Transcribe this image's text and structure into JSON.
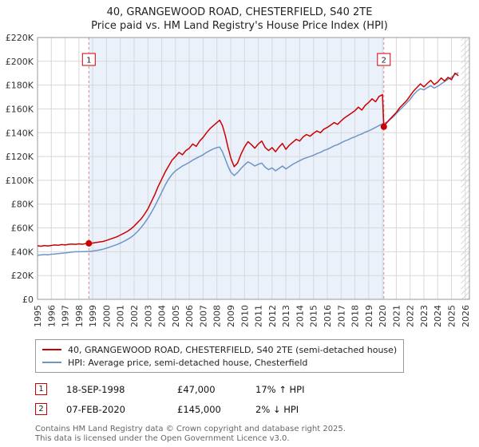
{
  "chart_data": {
    "type": "line",
    "title": "40, GRANGEWOOD ROAD, CHESTERFIELD, S40 2TE",
    "subtitle": "Price paid vs. HM Land Registry's House Price Index (HPI)",
    "xlim": [
      1995,
      2026.3
    ],
    "ylim": [
      0,
      220000
    ],
    "grid": true,
    "legend_position": "bottom",
    "x_ticks": [
      1995,
      1996,
      1997,
      1998,
      1999,
      2000,
      2001,
      2002,
      2003,
      2004,
      2005,
      2006,
      2007,
      2008,
      2009,
      2010,
      2011,
      2012,
      2013,
      2014,
      2015,
      2016,
      2017,
      2018,
      2019,
      2020,
      2021,
      2022,
      2023,
      2024,
      2025,
      2026
    ],
    "y_ticks": [
      {
        "value": 0,
        "label": "£0"
      },
      {
        "value": 20000,
        "label": "£20K"
      },
      {
        "value": 40000,
        "label": "£40K"
      },
      {
        "value": 60000,
        "label": "£60K"
      },
      {
        "value": 80000,
        "label": "£80K"
      },
      {
        "value": 100000,
        "label": "£100K"
      },
      {
        "value": 120000,
        "label": "£120K"
      },
      {
        "value": 140000,
        "label": "£140K"
      },
      {
        "value": 160000,
        "label": "£160K"
      },
      {
        "value": 180000,
        "label": "£180K"
      },
      {
        "value": 200000,
        "label": "£200K"
      },
      {
        "value": 220000,
        "label": "£220K"
      }
    ],
    "shaded_region": [
      1998.72,
      2020.1
    ],
    "hatch_region": [
      2025.7,
      2026.3
    ],
    "colors": {
      "property": "#cc0000",
      "hpi": "#6f95c5",
      "grid": "#d8d8d8",
      "axis_border": "#999999",
      "band": "#eaf1fb",
      "dashed": "#dd8888",
      "flag_border": "#cc0000"
    },
    "series": [
      {
        "name": "40, GRANGEWOOD ROAD, CHESTERFIELD, S40 2TE (semi-detached house)",
        "color": "#cc0000",
        "points": [
          [
            1995,
            45000
          ],
          [
            1995.25,
            44600
          ],
          [
            1995.5,
            45200
          ],
          [
            1995.75,
            44900
          ],
          [
            1996,
            45300
          ],
          [
            1996.25,
            45700
          ],
          [
            1996.5,
            45400
          ],
          [
            1996.75,
            46000
          ],
          [
            1997,
            45700
          ],
          [
            1997.25,
            46200
          ],
          [
            1997.5,
            46500
          ],
          [
            1997.75,
            46200
          ],
          [
            1998,
            46600
          ],
          [
            1998.25,
            46300
          ],
          [
            1998.5,
            46800
          ],
          [
            1998.72,
            47000
          ],
          [
            1999,
            47300
          ],
          [
            1999.25,
            47800
          ],
          [
            1999.5,
            48200
          ],
          [
            1999.75,
            48600
          ],
          [
            2000,
            49500
          ],
          [
            2000.25,
            50500
          ],
          [
            2000.5,
            51500
          ],
          [
            2000.75,
            52500
          ],
          [
            2001,
            54000
          ],
          [
            2001.25,
            55500
          ],
          [
            2001.5,
            57000
          ],
          [
            2001.75,
            59000
          ],
          [
            2002,
            61500
          ],
          [
            2002.25,
            64500
          ],
          [
            2002.5,
            67500
          ],
          [
            2002.75,
            71500
          ],
          [
            2003,
            76000
          ],
          [
            2003.25,
            82000
          ],
          [
            2003.5,
            88000
          ],
          [
            2003.75,
            95000
          ],
          [
            2004,
            101000
          ],
          [
            2004.25,
            107000
          ],
          [
            2004.5,
            112000
          ],
          [
            2004.75,
            117000
          ],
          [
            2005,
            120000
          ],
          [
            2005.25,
            123500
          ],
          [
            2005.5,
            121500
          ],
          [
            2005.75,
            125000
          ],
          [
            2006,
            127000
          ],
          [
            2006.25,
            130500
          ],
          [
            2006.5,
            128500
          ],
          [
            2006.75,
            133000
          ],
          [
            2007,
            136000
          ],
          [
            2007.25,
            140000
          ],
          [
            2007.5,
            143500
          ],
          [
            2007.75,
            146000
          ],
          [
            2008,
            148500
          ],
          [
            2008.2,
            150500
          ],
          [
            2008.4,
            146000
          ],
          [
            2008.6,
            138000
          ],
          [
            2008.8,
            128000
          ],
          [
            2009,
            119000
          ],
          [
            2009.25,
            111500
          ],
          [
            2009.5,
            114500
          ],
          [
            2009.75,
            122000
          ],
          [
            2010,
            128000
          ],
          [
            2010.25,
            132500
          ],
          [
            2010.5,
            130000
          ],
          [
            2010.75,
            127000
          ],
          [
            2011,
            130500
          ],
          [
            2011.25,
            133000
          ],
          [
            2011.5,
            127500
          ],
          [
            2011.75,
            125000
          ],
          [
            2012,
            127500
          ],
          [
            2012.25,
            124000
          ],
          [
            2012.5,
            128000
          ],
          [
            2012.75,
            131000
          ],
          [
            2013,
            126000
          ],
          [
            2013.25,
            129500
          ],
          [
            2013.5,
            132000
          ],
          [
            2013.75,
            134500
          ],
          [
            2014,
            133000
          ],
          [
            2014.25,
            136500
          ],
          [
            2014.5,
            138500
          ],
          [
            2014.75,
            137000
          ],
          [
            2015,
            139500
          ],
          [
            2015.25,
            141500
          ],
          [
            2015.5,
            140000
          ],
          [
            2015.75,
            143000
          ],
          [
            2016,
            144500
          ],
          [
            2016.25,
            146500
          ],
          [
            2016.5,
            148500
          ],
          [
            2016.75,
            147000
          ],
          [
            2017,
            150000
          ],
          [
            2017.25,
            152500
          ],
          [
            2017.5,
            154500
          ],
          [
            2017.75,
            156500
          ],
          [
            2018,
            158500
          ],
          [
            2018.25,
            161500
          ],
          [
            2018.5,
            159000
          ],
          [
            2018.75,
            163000
          ],
          [
            2019,
            165500
          ],
          [
            2019.25,
            168500
          ],
          [
            2019.5,
            166000
          ],
          [
            2019.75,
            170500
          ],
          [
            2020,
            172000
          ],
          [
            2020.1,
            145000
          ],
          [
            2020.25,
            147500
          ],
          [
            2020.5,
            151000
          ],
          [
            2020.75,
            154000
          ],
          [
            2021,
            157000
          ],
          [
            2021.25,
            161000
          ],
          [
            2021.5,
            164000
          ],
          [
            2021.75,
            167000
          ],
          [
            2022,
            171000
          ],
          [
            2022.25,
            175000
          ],
          [
            2022.5,
            178000
          ],
          [
            2022.75,
            181000
          ],
          [
            2023,
            178500
          ],
          [
            2023.25,
            181500
          ],
          [
            2023.5,
            184000
          ],
          [
            2023.75,
            180500
          ],
          [
            2024,
            182500
          ],
          [
            2024.25,
            186000
          ],
          [
            2024.5,
            183500
          ],
          [
            2024.75,
            186500
          ],
          [
            2025,
            184500
          ],
          [
            2025.25,
            190000
          ],
          [
            2025.5,
            188000
          ]
        ]
      },
      {
        "name": "HPI: Average price, semi-detached house, Chesterfield",
        "color": "#6f95c5",
        "points": [
          [
            1995,
            37000
          ],
          [
            1995.25,
            37300
          ],
          [
            1995.5,
            37600
          ],
          [
            1995.75,
            37400
          ],
          [
            1996,
            37900
          ],
          [
            1996.25,
            38100
          ],
          [
            1996.5,
            38400
          ],
          [
            1996.75,
            38700
          ],
          [
            1997,
            39000
          ],
          [
            1997.25,
            39300
          ],
          [
            1997.5,
            39700
          ],
          [
            1997.75,
            40000
          ],
          [
            1998,
            40000
          ],
          [
            1998.25,
            40100
          ],
          [
            1998.5,
            40200
          ],
          [
            1998.75,
            40200
          ],
          [
            1999,
            40600
          ],
          [
            1999.25,
            41000
          ],
          [
            1999.5,
            41500
          ],
          [
            1999.75,
            42100
          ],
          [
            2000,
            43000
          ],
          [
            2000.25,
            44000
          ],
          [
            2000.5,
            45000
          ],
          [
            2000.75,
            46000
          ],
          [
            2001,
            47200
          ],
          [
            2001.25,
            48600
          ],
          [
            2001.5,
            50200
          ],
          [
            2001.75,
            52000
          ],
          [
            2002,
            54200
          ],
          [
            2002.25,
            57000
          ],
          [
            2002.5,
            60200
          ],
          [
            2002.75,
            64000
          ],
          [
            2003,
            68200
          ],
          [
            2003.25,
            73000
          ],
          [
            2003.5,
            78200
          ],
          [
            2003.75,
            84000
          ],
          [
            2004,
            90000
          ],
          [
            2004.25,
            96000
          ],
          [
            2004.5,
            101000
          ],
          [
            2004.75,
            105000
          ],
          [
            2005,
            108000
          ],
          [
            2005.25,
            110000
          ],
          [
            2005.5,
            112000
          ],
          [
            2005.75,
            113500
          ],
          [
            2006,
            115000
          ],
          [
            2006.25,
            117000
          ],
          [
            2006.5,
            118500
          ],
          [
            2006.75,
            120000
          ],
          [
            2007,
            121500
          ],
          [
            2007.25,
            123500
          ],
          [
            2007.5,
            125000
          ],
          [
            2007.75,
            126500
          ],
          [
            2008,
            127500
          ],
          [
            2008.2,
            128000
          ],
          [
            2008.4,
            124000
          ],
          [
            2008.6,
            118000
          ],
          [
            2008.8,
            112000
          ],
          [
            2009,
            107000
          ],
          [
            2009.25,
            104000
          ],
          [
            2009.5,
            106500
          ],
          [
            2009.75,
            110000
          ],
          [
            2010,
            113000
          ],
          [
            2010.25,
            115500
          ],
          [
            2010.5,
            114000
          ],
          [
            2010.75,
            112000
          ],
          [
            2011,
            113500
          ],
          [
            2011.25,
            114500
          ],
          [
            2011.5,
            111000
          ],
          [
            2011.75,
            109000
          ],
          [
            2012,
            110500
          ],
          [
            2012.25,
            108000
          ],
          [
            2012.5,
            110000
          ],
          [
            2012.75,
            112000
          ],
          [
            2013,
            109500
          ],
          [
            2013.25,
            111500
          ],
          [
            2013.5,
            113500
          ],
          [
            2013.75,
            115000
          ],
          [
            2014,
            116500
          ],
          [
            2014.25,
            118000
          ],
          [
            2014.5,
            119000
          ],
          [
            2014.75,
            120000
          ],
          [
            2015,
            121000
          ],
          [
            2015.25,
            122500
          ],
          [
            2015.5,
            123500
          ],
          [
            2015.75,
            125000
          ],
          [
            2016,
            126000
          ],
          [
            2016.25,
            127500
          ],
          [
            2016.5,
            129000
          ],
          [
            2016.75,
            130000
          ],
          [
            2017,
            131500
          ],
          [
            2017.25,
            133000
          ],
          [
            2017.5,
            134000
          ],
          [
            2017.75,
            135500
          ],
          [
            2018,
            136500
          ],
          [
            2018.25,
            138000
          ],
          [
            2018.5,
            139000
          ],
          [
            2018.75,
            140500
          ],
          [
            2019,
            141500
          ],
          [
            2019.25,
            143000
          ],
          [
            2019.5,
            144500
          ],
          [
            2019.75,
            146000
          ],
          [
            2020,
            147500
          ],
          [
            2020.25,
            148500
          ],
          [
            2020.5,
            150500
          ],
          [
            2020.75,
            153000
          ],
          [
            2021,
            156000
          ],
          [
            2021.25,
            159000
          ],
          [
            2021.5,
            162000
          ],
          [
            2021.75,
            165000
          ],
          [
            2022,
            168000
          ],
          [
            2022.25,
            172000
          ],
          [
            2022.5,
            175000
          ],
          [
            2022.75,
            177000
          ],
          [
            2023,
            176000
          ],
          [
            2023.25,
            178000
          ],
          [
            2023.5,
            179500
          ],
          [
            2023.75,
            177500
          ],
          [
            2024,
            179000
          ],
          [
            2024.25,
            181000
          ],
          [
            2024.5,
            183000
          ],
          [
            2024.75,
            185000
          ],
          [
            2025,
            186500
          ],
          [
            2025.25,
            189000
          ],
          [
            2025.5,
            190500
          ]
        ]
      }
    ],
    "markers": [
      {
        "num": "1",
        "x": 1998.72,
        "y": 47000,
        "date": "18-SEP-1998",
        "price": "£47,000",
        "hpi": "17% ↑ HPI"
      },
      {
        "num": "2",
        "x": 2020.1,
        "y": 145000,
        "date": "07-FEB-2020",
        "price": "£145,000",
        "hpi": "2% ↓ HPI"
      }
    ]
  },
  "footer": {
    "line1": "Contains HM Land Registry data © Crown copyright and database right 2025.",
    "line2": "This data is licensed under the Open Government Licence v3.0."
  }
}
